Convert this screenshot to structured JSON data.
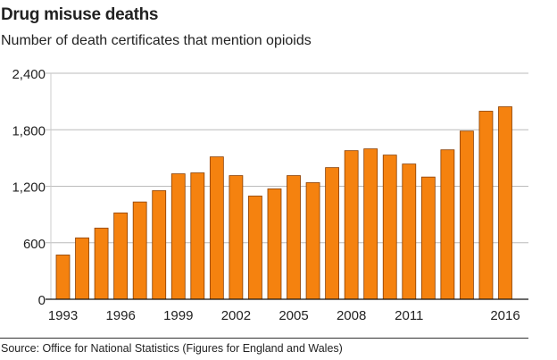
{
  "header": {
    "title": "Drug misuse deaths",
    "subtitle": "Number of death certificates that mention opioids"
  },
  "footer": {
    "source": "Source: Office for National Statistics (Figures for England and Wales)"
  },
  "colors": {
    "bar": "#f5820f",
    "bar_edge": "#8a3e00",
    "grid": "#bbbbbb"
  },
  "chart_data": {
    "type": "bar",
    "title": "Drug misuse deaths",
    "subtitle": "Number of death certificates that mention opioids",
    "xlabel": "",
    "ylabel": "",
    "ylim": [
      0,
      2400
    ],
    "yticks": [
      0,
      600,
      1200,
      1800,
      2400
    ],
    "ytick_labels": [
      "0",
      "600",
      "1,200",
      "1,800",
      "2,400"
    ],
    "xtick_labels": [
      "1993",
      "1996",
      "1999",
      "2002",
      "2005",
      "2008",
      "2011",
      "2016"
    ],
    "grid": true,
    "categories": [
      "1993",
      "1994",
      "1995",
      "1996",
      "1997",
      "1998",
      "1999",
      "2000",
      "2001",
      "2002",
      "2003",
      "2004",
      "2005",
      "2006",
      "2007",
      "2008",
      "2009",
      "2010",
      "2011",
      "2012",
      "2013",
      "2014",
      "2015",
      "2016"
    ],
    "values": [
      470,
      652,
      756,
      917,
      1033,
      1153,
      1332,
      1342,
      1512,
      1313,
      1096,
      1172,
      1313,
      1238,
      1398,
      1578,
      1597,
      1531,
      1436,
      1298,
      1587,
      1786,
      1997,
      2044
    ]
  }
}
